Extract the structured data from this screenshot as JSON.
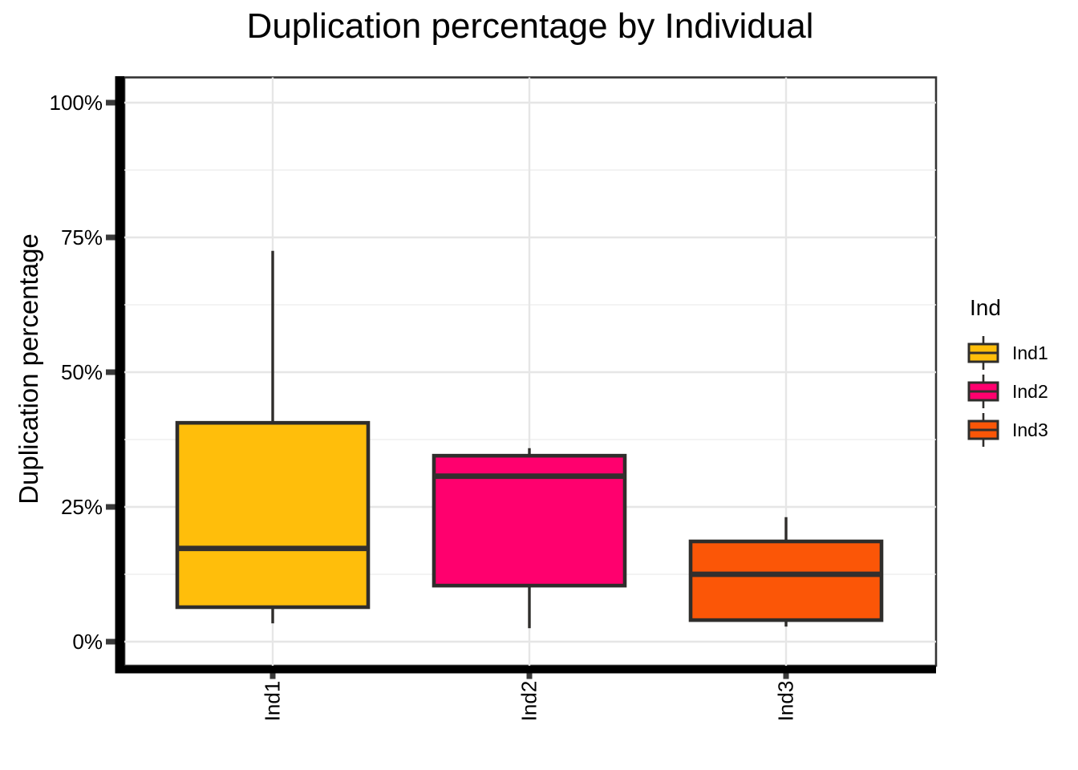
{
  "title": "Duplication percentage by Individual",
  "y_axis": {
    "title": "Duplication percentage",
    "range": [
      0,
      100
    ],
    "ticks": [
      {
        "value": 0,
        "label": "0%"
      },
      {
        "value": 25,
        "label": "25%"
      },
      {
        "value": 50,
        "label": "50%"
      },
      {
        "value": 75,
        "label": "75%"
      },
      {
        "value": 100,
        "label": "100%"
      }
    ],
    "minor_ticks": [
      12.5,
      37.5,
      62.5,
      87.5
    ]
  },
  "x_axis": {
    "categories": [
      "Ind1",
      "Ind2",
      "Ind3"
    ]
  },
  "legend": {
    "title": "Ind",
    "entries": [
      {
        "label": "Ind1",
        "color": "#FFBE0B"
      },
      {
        "label": "Ind2",
        "color": "#FF006E"
      },
      {
        "label": "Ind3",
        "color": "#FB5607"
      }
    ]
  },
  "chart_data": {
    "type": "boxplot",
    "title": "Duplication percentage by Individual",
    "xlabel": "",
    "ylabel": "Duplication percentage",
    "ylim": [
      0,
      100
    ],
    "y_tick_format": "percent",
    "grid": "major+minor",
    "legend_position": "right",
    "categories": [
      "Ind1",
      "Ind2",
      "Ind3"
    ],
    "series": [
      {
        "name": "Ind1",
        "color": "#FFBE0B",
        "whisker_low": 3.4,
        "q1": 6.4,
        "median": 17.3,
        "q3": 40.6,
        "whisker_high": 72.5
      },
      {
        "name": "Ind2",
        "color": "#FF006E",
        "whisker_low": 2.5,
        "q1": 10.4,
        "median": 30.7,
        "q3": 34.5,
        "whisker_high": 35.9
      },
      {
        "name": "Ind3",
        "color": "#FB5607",
        "whisker_low": 2.8,
        "q1": 4.0,
        "median": 12.5,
        "q3": 18.6,
        "whisker_high": 23.1
      }
    ]
  },
  "colors": {
    "box_border": "#2F2D2B",
    "median_line": "#332F2E",
    "whisker_line": "#2F2D2B",
    "axis_line": "#000000",
    "panel_border": "#333333",
    "tick_mark": "#3A3A3A",
    "grid_major": "#E6E6E6",
    "grid_minor": "#EFEFEF",
    "background": "#FFFFFF",
    "text": "#000000"
  }
}
